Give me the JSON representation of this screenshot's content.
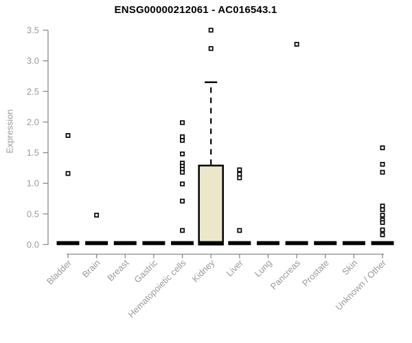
{
  "chart_data": {
    "type": "boxplot",
    "title": "ENSG00000212061 - AC016543.1",
    "ylabel": "Expression",
    "ylim": [
      0.0,
      3.5
    ],
    "yticks": [
      "0.0",
      "0.5",
      "1.0",
      "1.5",
      "2.0",
      "2.5",
      "3.0",
      "3.5"
    ],
    "grid": false,
    "legend": "none",
    "categories": [
      "Bladder",
      "Brain",
      "Breast",
      "Gastric",
      "Hematopoietic cells",
      "Kidney",
      "Liver",
      "Lung",
      "Pancreas",
      "Prostate",
      "Skin",
      "Unknown / Other"
    ],
    "boxes": [
      {
        "category": "Bladder",
        "median": 0,
        "q1": 0,
        "q3": 0,
        "whisker_high": 0,
        "points": [
          1.78,
          1.16
        ]
      },
      {
        "category": "Brain",
        "median": 0,
        "q1": 0,
        "q3": 0,
        "whisker_high": 0,
        "points": [
          0.48
        ]
      },
      {
        "category": "Breast",
        "median": 0,
        "q1": 0,
        "q3": 0,
        "whisker_high": 0,
        "points": []
      },
      {
        "category": "Gastric",
        "median": 0,
        "q1": 0,
        "q3": 0,
        "whisker_high": 0,
        "points": []
      },
      {
        "category": "Hematopoietic cells",
        "median": 0,
        "q1": 0,
        "q3": 0,
        "whisker_high": 0,
        "points": [
          1.99,
          1.76,
          1.7,
          1.48,
          1.33,
          1.28,
          1.23,
          1.18,
          0.99,
          0.71,
          0.23
        ]
      },
      {
        "category": "Kidney",
        "median": 0,
        "q1": 0,
        "q3": 1.29,
        "whisker_high": 2.65,
        "points": [
          3.5,
          3.2
        ]
      },
      {
        "category": "Liver",
        "median": 0,
        "q1": 0,
        "q3": 0,
        "whisker_high": 0,
        "points": [
          1.22,
          1.15,
          1.09,
          0.23
        ]
      },
      {
        "category": "Lung",
        "median": 0,
        "q1": 0,
        "q3": 0,
        "whisker_high": 0,
        "points": []
      },
      {
        "category": "Pancreas",
        "median": 0,
        "q1": 0,
        "q3": 0,
        "whisker_high": 0,
        "points": [
          3.27
        ]
      },
      {
        "category": "Prostate",
        "median": 0,
        "q1": 0,
        "q3": 0,
        "whisker_high": 0,
        "points": []
      },
      {
        "category": "Skin",
        "median": 0,
        "q1": 0,
        "q3": 0,
        "whisker_high": 0,
        "points": []
      },
      {
        "category": "Unknown / Other",
        "median": 0,
        "q1": 0,
        "q3": 0,
        "whisker_high": 0,
        "points": [
          1.58,
          1.31,
          1.18,
          0.63,
          0.57,
          0.48,
          0.4,
          0.36,
          0.24,
          0.16
        ]
      }
    ],
    "colors": {
      "box_fill": "#ece7cb",
      "box_border": "#000000",
      "median_bar": "#000000",
      "point_border": "#000000",
      "point_fill": "#ffffff",
      "axis": "#888888",
      "tick_label": "#999999",
      "title": "#000000",
      "background": "#ffffff"
    }
  }
}
